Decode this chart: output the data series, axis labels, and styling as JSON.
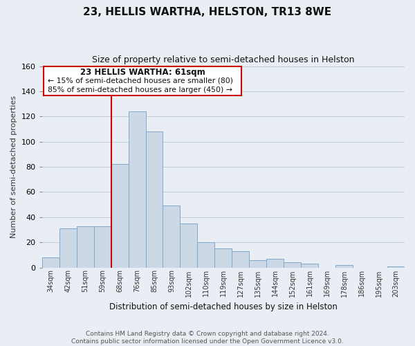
{
  "title": "23, HELLIS WARTHA, HELSTON, TR13 8WE",
  "subtitle": "Size of property relative to semi-detached houses in Helston",
  "xlabel": "Distribution of semi-detached houses by size in Helston",
  "ylabel": "Number of semi-detached properties",
  "categories": [
    "34sqm",
    "42sqm",
    "51sqm",
    "59sqm",
    "68sqm",
    "76sqm",
    "85sqm",
    "93sqm",
    "102sqm",
    "110sqm",
    "119sqm",
    "127sqm",
    "135sqm",
    "144sqm",
    "152sqm",
    "161sqm",
    "169sqm",
    "178sqm",
    "186sqm",
    "195sqm",
    "203sqm"
  ],
  "values": [
    8,
    31,
    33,
    33,
    82,
    124,
    108,
    49,
    35,
    20,
    15,
    13,
    6,
    7,
    4,
    3,
    0,
    2,
    0,
    0,
    1
  ],
  "bar_color": "#cdd8e6",
  "bar_edge_color": "#7fa8cc",
  "highlight_line_color": "#cc0000",
  "annotation_title": "23 HELLIS WARTHA: 61sqm",
  "annotation_line1": "← 15% of semi-detached houses are smaller (80)",
  "annotation_line2": "85% of semi-detached houses are larger (450) →",
  "annotation_box_facecolor": "#ffffff",
  "annotation_box_edgecolor": "#cc0000",
  "ylim": [
    0,
    160
  ],
  "yticks": [
    0,
    20,
    40,
    60,
    80,
    100,
    120,
    140,
    160
  ],
  "footer_line1": "Contains HM Land Registry data © Crown copyright and database right 2024.",
  "footer_line2": "Contains public sector information licensed under the Open Government Licence v3.0.",
  "fig_facecolor": "#e8eef4",
  "plot_facecolor": "#e8eef4",
  "grid_color": "#c0ccd8",
  "title_fontsize": 11,
  "subtitle_fontsize": 9
}
